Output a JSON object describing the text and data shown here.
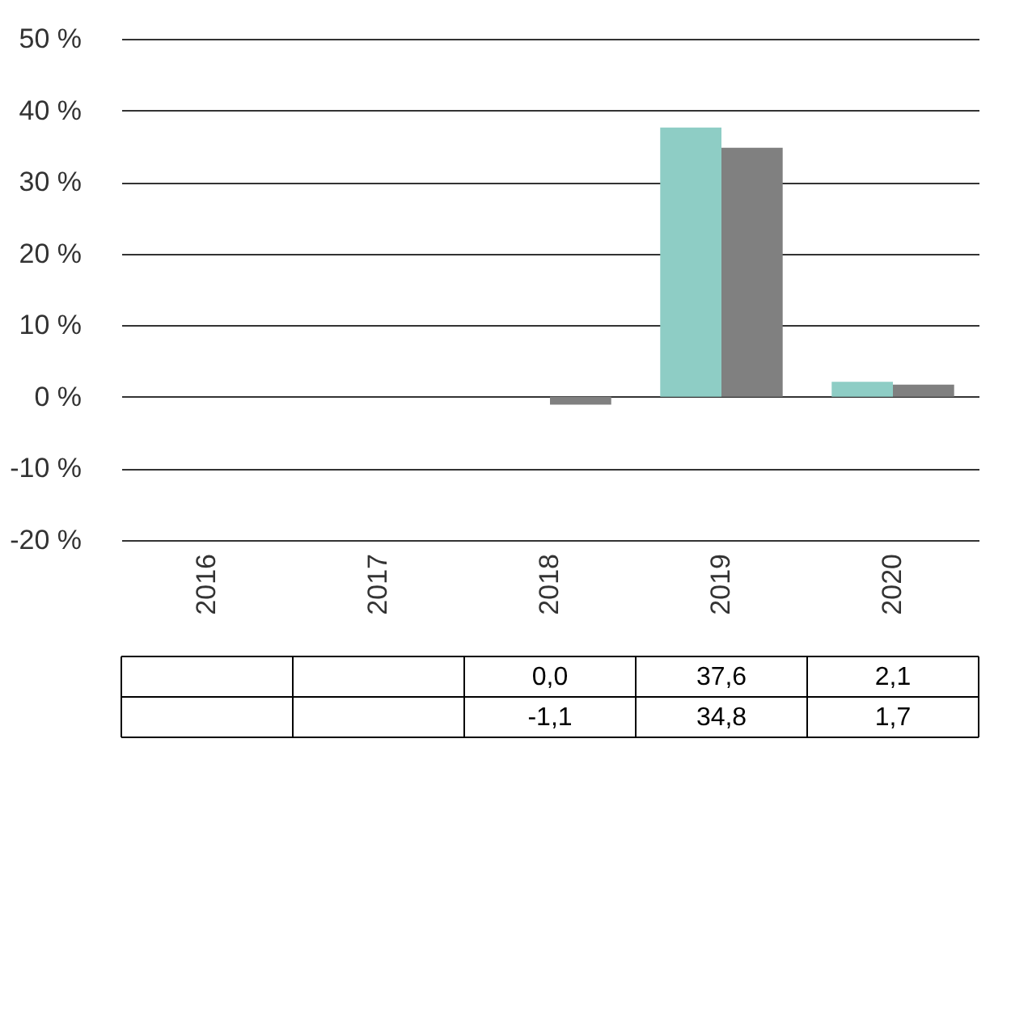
{
  "chart_data": {
    "type": "bar",
    "categories": [
      "2016",
      "2017",
      "2018",
      "2019",
      "2020"
    ],
    "series": [
      {
        "color": "#8ecdc5",
        "values": [
          null,
          null,
          0.0,
          37.6,
          2.1
        ],
        "value_labels": [
          null,
          null,
          "0,0",
          "37,6",
          "2,1"
        ]
      },
      {
        "color": "#808080",
        "values": [
          null,
          null,
          -1.1,
          34.8,
          1.7
        ],
        "value_labels": [
          null,
          null,
          "-1,1",
          "34,8",
          "1,7"
        ]
      }
    ],
    "ylim": [
      -20,
      50
    ],
    "yticks": [
      {
        "value": -20,
        "label": "-20 %"
      },
      {
        "value": -10,
        "label": "-10 %"
      },
      {
        "value": 0,
        "label": "0 %"
      },
      {
        "value": 10,
        "label": "10 %"
      },
      {
        "value": 20,
        "label": "20 %"
      },
      {
        "value": 30,
        "label": "30 %"
      },
      {
        "value": 40,
        "label": "40 %"
      },
      {
        "value": 50,
        "label": "50 %"
      }
    ],
    "grid": "y"
  }
}
